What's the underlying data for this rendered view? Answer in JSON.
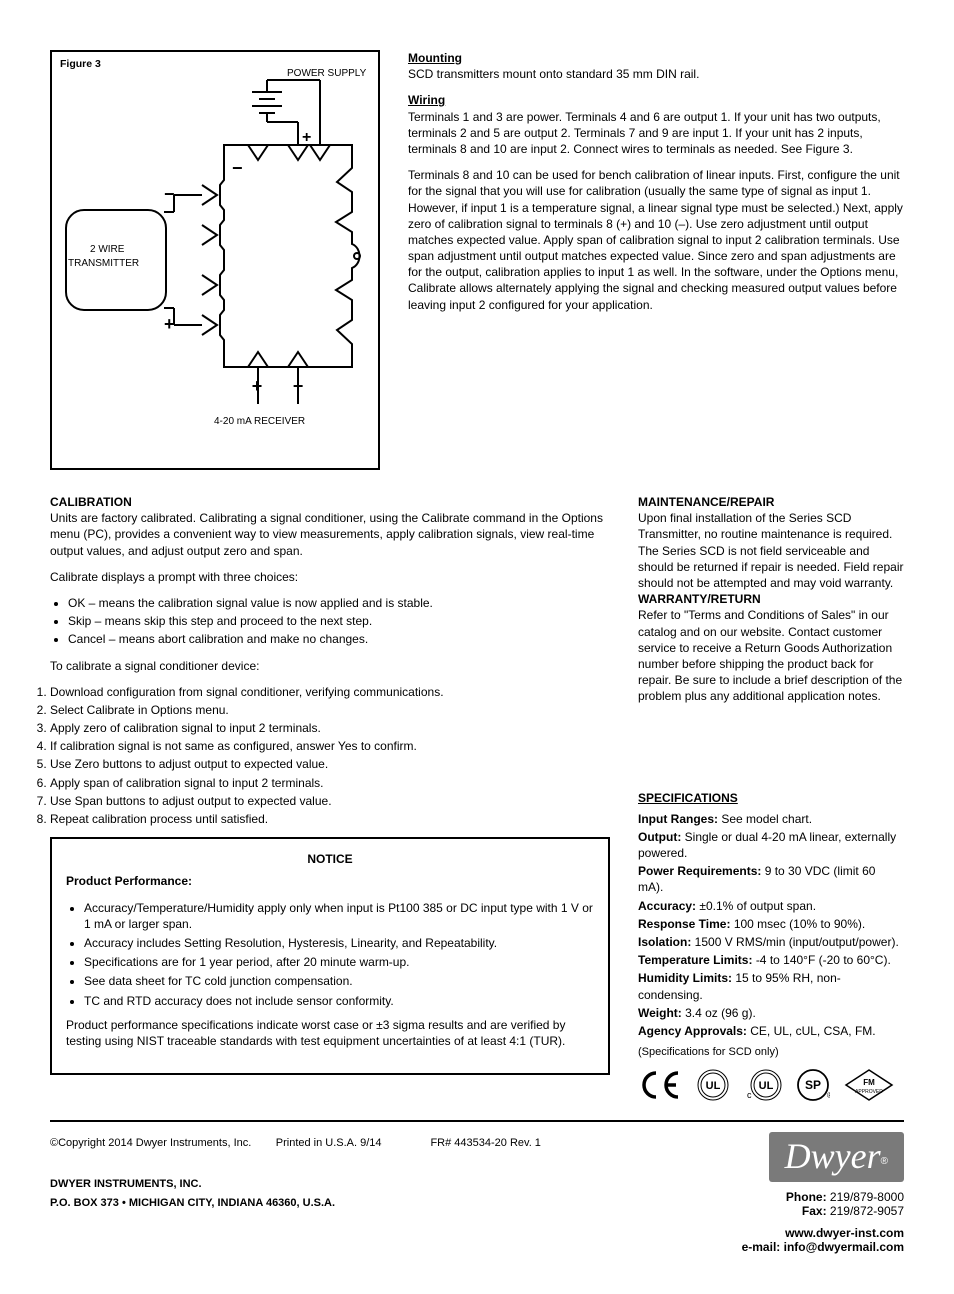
{
  "figure": {
    "title": "Figure 3",
    "top_label": "POWER SUPPLY",
    "left_label": "2 WIRE TRANSMITTER",
    "bottom_label": "4-20 mA RECEIVER"
  },
  "right_col": {
    "mounting_head": "Mounting",
    "mounting_text": "SCD transmitters mount onto standard 35 mm DIN rail.",
    "wiring_head": "Wiring",
    "wiring_paragraphs": [
      "Terminals 1 and 3 are power. Terminals 4 and 6 are output 1. If your unit has two outputs, terminals 2 and 5 are output 2. Terminals 7 and 9 are input 1. If your unit has 2 inputs, terminals 8 and 10 are input 2. Connect wires to terminals as needed. See Figure 3.",
      "Terminals 8 and 10 can be used for bench calibration of linear inputs. First, configure the unit for the signal that you will use for calibration (usually the same type of signal as input 1. However, if input 1 is a temperature signal, a linear signal type must be selected.) Next, apply zero of calibration signal to terminals 8 (+) and 10 (–). Use zero adjustment until output matches expected value. Apply span of calibration signal to input 2 calibration terminals. Use span adjustment until output matches expected value. Since zero and span adjustments are for the output, calibration applies to input 1 as well. In the software, under the Options menu, Calibrate allows alternately applying the signal and checking measured output values before leaving input 2 configured for your application."
    ]
  },
  "maintenance": {
    "head": "MAINTENANCE/REPAIR",
    "text": "Upon final installation of the Series SCD Transmitter, no routine maintenance is required. The Series SCD is not field serviceable and should be returned if repair is needed. Field repair should not be attempted and may void warranty."
  },
  "warranty": {
    "head": "WARRANTY/RETURN",
    "text": "Refer to \"Terms and Conditions of Sales\" in our catalog and on our website. Contact customer service to receive a Return Goods Authorization number before shipping the product back for repair. Be sure to include a brief description of the problem plus any additional application notes."
  },
  "calibration": {
    "head": "CALIBRATION",
    "intro": "Units are factory calibrated. Calibrating a signal conditioner, using the Calibrate command in the Options menu (PC), provides a convenient way to view measurements, apply calibration signals, view real-time output values, and adjust output zero and span.",
    "prompts_intro": "Calibrate displays a prompt with three choices:",
    "prompts": [
      "OK – means the calibration signal value is now applied and is stable.",
      "Skip – means skip this step and proceed to the next step.",
      "Cancel – means abort calibration and make no changes."
    ],
    "steps_intro": "To calibrate a signal conditioner device:",
    "steps": [
      "Download configuration from signal conditioner, verifying communications.",
      "Select Calibrate in Options menu.",
      "Apply zero of calibration signal to input 2 terminals.",
      "If calibration signal is not same as configured, answer Yes to confirm.",
      "Use Zero buttons to adjust output to expected value.",
      "Apply span of calibration signal to input 2 terminals.",
      "Use Span buttons to adjust output to expected value.",
      "Repeat calibration process until satisfied."
    ]
  },
  "notice": {
    "title": "NOTICE",
    "head": "Product Performance:",
    "bullets": [
      "Accuracy/Temperature/Humidity apply only when input is Pt100 385 or DC input type with 1 V or 1 mA or larger span.",
      "Accuracy includes Setting Resolution, Hysteresis, Linearity, and Repeatability.",
      "Specifications are for 1 year period, after 20 minute warm-up.",
      "See data sheet for TC cold junction compensation.",
      "TC and RTD accuracy does not include sensor conformity."
    ],
    "performance": "Product performance specifications indicate worst case or ±3 sigma results and are verified by testing using NIST traceable standards with test equipment uncertainties of at least 4:1 (TUR)."
  },
  "specs": {
    "head": "SPECIFICATIONS",
    "items": [
      {
        "label": "Input Ranges:",
        "value": "See model chart."
      },
      {
        "label": "Output:",
        "value": "Single or dual 4-20 mA linear, externally powered."
      },
      {
        "label": "Power Requirements:",
        "value": "9 to 30 VDC (limit 60 mA)."
      },
      {
        "label": "Accuracy:",
        "value": "±0.1% of output span."
      },
      {
        "label": "Response Time:",
        "value": "100 msec (10% to 90%)."
      },
      {
        "label": "Isolation:",
        "value": "1500 V RMS/min (input/output/power)."
      },
      {
        "label": "Temperature Limits:",
        "value": "-4 to 140°F (-20 to 60°C)."
      },
      {
        "label": "Humidity Limits:",
        "value": "15 to 95% RH, non-condensing."
      },
      {
        "label": "Weight:",
        "value": "3.4 oz (96 g)."
      },
      {
        "label": "Agency Approvals:",
        "value": "CE, UL, cUL, CSA, FM."
      }
    ]
  },
  "footer": {
    "copyright": "©Copyright 2014 Dwyer Instruments, Inc.",
    "printed": "Printed in U.S.A. 9/14",
    "fr": "FR# 443534-20 Rev. 1",
    "company": "DWYER INSTRUMENTS, INC.",
    "address": "P.O. BOX 373 • MICHIGAN CITY, INDIANA 46360, U.S.A.",
    "phone_label": "Phone:",
    "phone": "219/879-8000",
    "fax_label": "Fax:",
    "fax": "219/872-9057",
    "web": "www.dwyer-inst.com",
    "email": "e-mail: info@dwyermail.com",
    "lit": "(Specifications for SCD only)"
  }
}
